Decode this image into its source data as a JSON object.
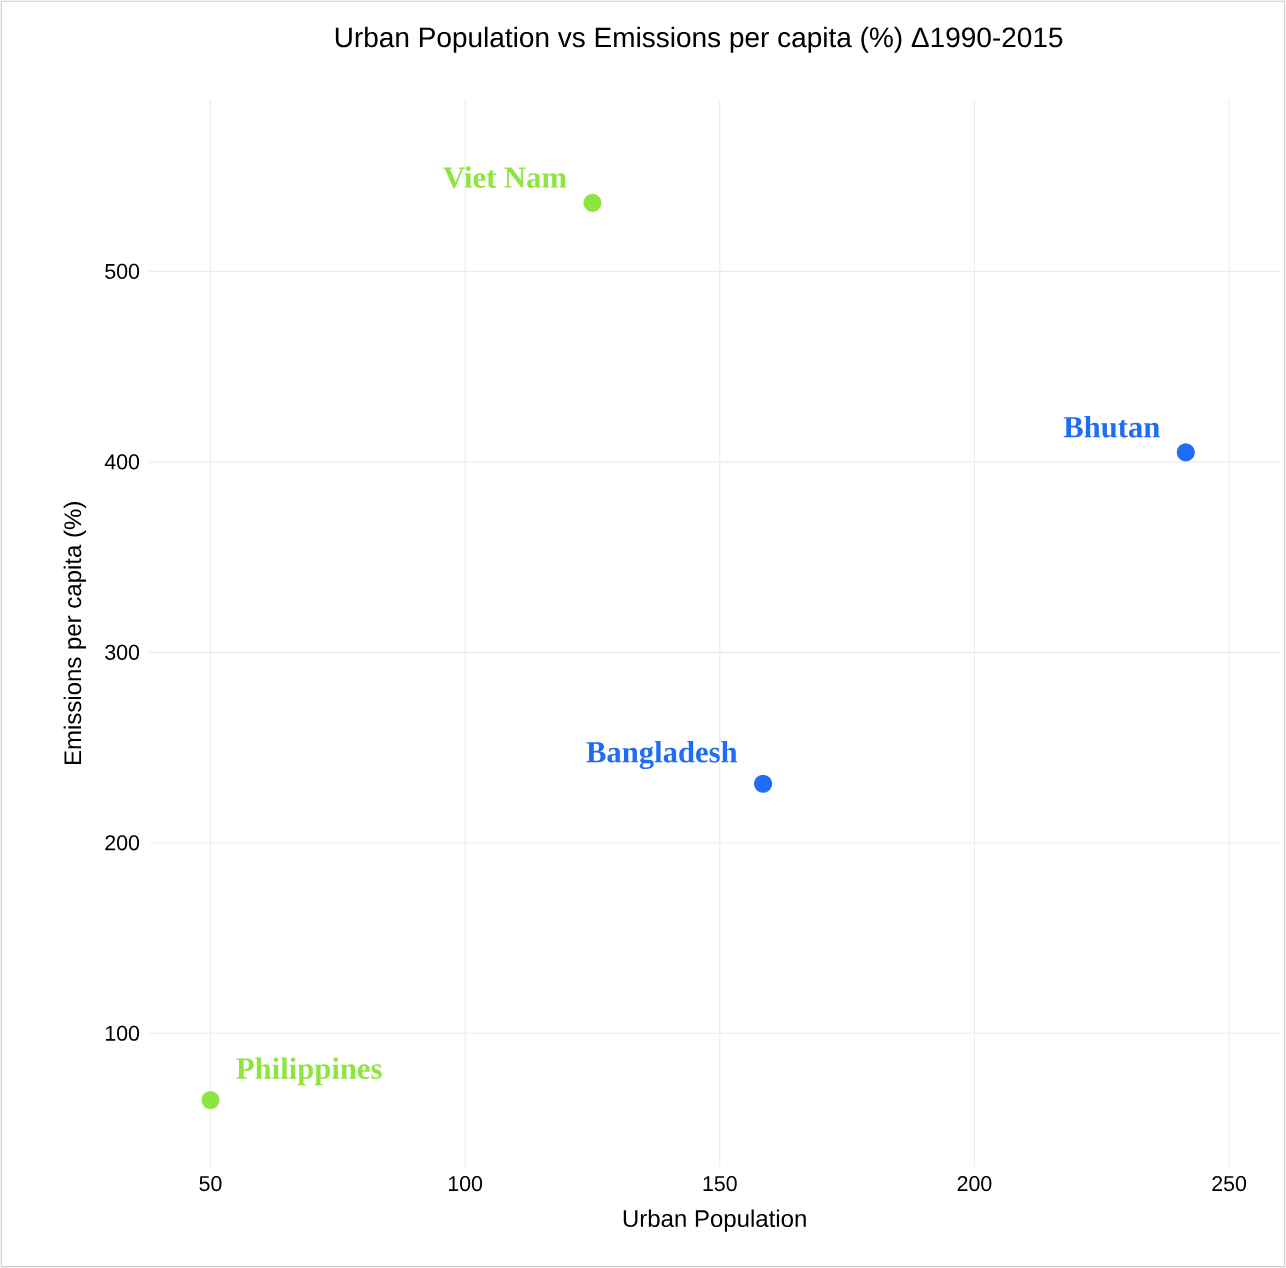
{
  "chart_data": {
    "type": "scatter",
    "title": "Urban Population vs Emissions per capita (%) Δ1990-2015",
    "xlabel": "Urban Population",
    "ylabel": "Emissions per capita (%)",
    "series": [
      {
        "color": "#8ee53f",
        "x": [
          125,
          50
        ],
        "values": [
          536,
          65
        ]
      },
      {
        "color": "#1f6cf7",
        "x": [
          241.5,
          158.5
        ],
        "values": [
          405,
          231
        ]
      }
    ],
    "annotations": [
      {
        "text": "Viet Nam",
        "x": 125,
        "y": 536
      },
      {
        "text": "Philippines",
        "x": 50,
        "y": 65
      },
      {
        "text": "Bhutan",
        "x": 241.5,
        "y": 405
      },
      {
        "text": "Bangladesh",
        "x": 158.5,
        "y": 231
      }
    ],
    "xlim": [
      38,
      260
    ],
    "ylim": [
      30,
      590
    ],
    "xticks": [
      50,
      100,
      150,
      200,
      250
    ],
    "yticks": [
      100,
      200,
      300,
      400,
      500
    ],
    "grid": true
  }
}
